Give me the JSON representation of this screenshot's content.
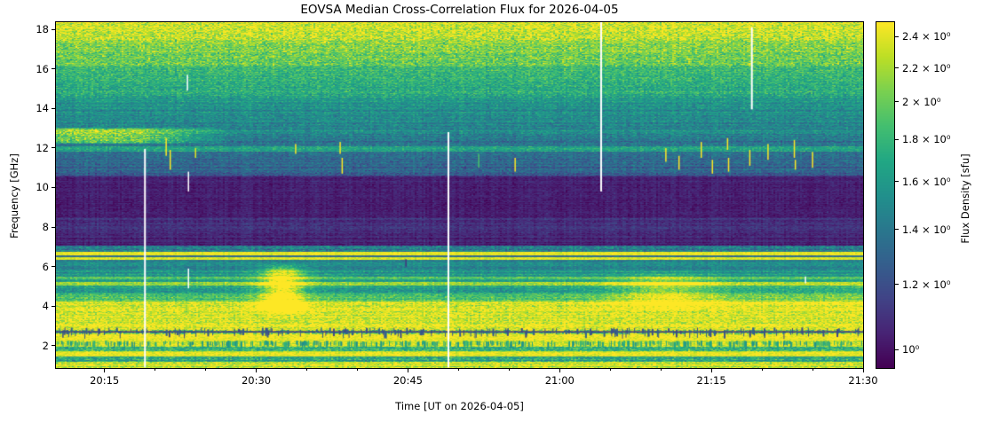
{
  "figure": {
    "background": "#ffffff",
    "text_color": "#000000"
  },
  "chart_data": {
    "type": "heatmap",
    "subtype": "radio-dynamic-spectrum",
    "title": "EOVSA Median Cross-Correlation Flux for 2026-04-05",
    "xlabel": "Time [UT on 2026-04-05]",
    "ylabel": "Frequency [GHz]",
    "colorbar_label": "Flux Density [sfu]",
    "colormap": "viridis",
    "scale": "log",
    "flux_range_sfu": [
      0.95,
      2.5
    ],
    "x_axis": {
      "start_minutes": 1210.2,
      "end_minutes": 1290.0,
      "major_tick_minutes": [
        1215,
        1230,
        1245,
        1260,
        1275,
        1290
      ],
      "major_tick_labels": [
        "20:15",
        "20:30",
        "20:45",
        "21:00",
        "21:15",
        "21:30"
      ],
      "minor_tick_interval_min": 5
    },
    "y_axis": {
      "f_min_ghz": 0.87,
      "f_max_ghz": 18.36,
      "tick_values": [
        2,
        4,
        6,
        8,
        10,
        12,
        14,
        16,
        18
      ]
    },
    "colorbar_ticks": [
      {
        "value": 2.4,
        "label": "2.4 × 10⁰"
      },
      {
        "value": 2.2,
        "label": "2.2 × 10⁰"
      },
      {
        "value": 2.0,
        "label": "2 × 10⁰"
      },
      {
        "value": 1.8,
        "label": "1.8 × 10⁰"
      },
      {
        "value": 1.6,
        "label": "1.6 × 10⁰"
      },
      {
        "value": 1.4,
        "label": "1.4 × 10⁰"
      },
      {
        "value": 1.2,
        "label": "1.2 × 10⁰"
      },
      {
        "value": 1.0,
        "label": "10⁰"
      }
    ],
    "frequency_bands": [
      {
        "f_hi": 18.4,
        "f_lo": 17.45,
        "flux_hi": 2.4,
        "flux_lo": 2.28,
        "noise": 0.18,
        "stripe": 0.03
      },
      {
        "f_hi": 17.45,
        "f_lo": 16.1,
        "flux_hi": 2.1,
        "flux_lo": 1.95,
        "noise": 0.16,
        "stripe": 0.035
      },
      {
        "f_hi": 16.1,
        "f_lo": 14.55,
        "flux_hi": 1.82,
        "flux_lo": 1.66,
        "noise": 0.13,
        "stripe": 0.04
      },
      {
        "f_hi": 14.55,
        "f_lo": 12.1,
        "flux_hi": 1.6,
        "flux_lo": 1.4,
        "noise": 0.11,
        "stripe": 0.05
      },
      {
        "f_hi": 12.1,
        "f_lo": 11.82,
        "flux_hi": 1.66,
        "flux_lo": 1.66,
        "noise": 0.1,
        "stripe": 0.04
      },
      {
        "f_hi": 11.82,
        "f_lo": 10.55,
        "flux_hi": 1.33,
        "flux_lo": 1.27,
        "noise": 0.1,
        "stripe": 0.055
      },
      {
        "f_hi": 10.55,
        "f_lo": 8.5,
        "flux_hi": 1.03,
        "flux_lo": 1.03,
        "noise": 0.05,
        "stripe": 0.02
      },
      {
        "f_hi": 8.5,
        "f_lo": 7.4,
        "flux_hi": 1.09,
        "flux_lo": 1.06,
        "noise": 0.06,
        "stripe": 0.04
      },
      {
        "f_hi": 7.4,
        "f_lo": 7.05,
        "flux_hi": 1.04,
        "flux_lo": 1.04,
        "noise": 0.05,
        "stripe": 0.04
      },
      {
        "f_hi": 7.05,
        "f_lo": 6.73,
        "flux_hi": 1.42,
        "flux_lo": 1.42,
        "noise": 0.15,
        "stripe": 0.05
      },
      {
        "f_hi": 6.73,
        "f_lo": 6.58,
        "flux_hi": 2.42,
        "flux_lo": 2.42,
        "noise": 0.05,
        "stripe": 0.02
      },
      {
        "f_hi": 6.58,
        "f_lo": 6.49,
        "flux_hi": 1.3,
        "flux_lo": 1.3,
        "noise": 0.06,
        "stripe": 0.04
      },
      {
        "f_hi": 6.49,
        "f_lo": 6.36,
        "flux_hi": 2.35,
        "flux_lo": 2.35,
        "noise": 0.06,
        "stripe": 0.02
      },
      {
        "f_hi": 6.36,
        "f_lo": 5.8,
        "flux_hi": 1.48,
        "flux_lo": 1.48,
        "noise": 0.09,
        "stripe": 0.05
      },
      {
        "f_hi": 5.8,
        "f_lo": 5.5,
        "flux_hi": 1.6,
        "flux_lo": 1.6,
        "noise": 0.1,
        "stripe": 0.05
      },
      {
        "f_hi": 5.5,
        "f_lo": 5.35,
        "flux_hi": 1.95,
        "flux_lo": 1.95,
        "noise": 0.1,
        "stripe": 0.04
      },
      {
        "f_hi": 5.35,
        "f_lo": 5.22,
        "flux_hi": 1.62,
        "flux_lo": 1.62,
        "noise": 0.09,
        "stripe": 0.04
      },
      {
        "f_hi": 5.22,
        "f_lo": 5.06,
        "flux_hi": 2.15,
        "flux_lo": 2.15,
        "noise": 0.1,
        "stripe": 0.04
      },
      {
        "f_hi": 5.06,
        "f_lo": 4.65,
        "flux_hi": 1.68,
        "flux_lo": 1.6,
        "noise": 0.11,
        "stripe": 0.05
      },
      {
        "f_hi": 4.65,
        "f_lo": 4.22,
        "flux_hi": 1.85,
        "flux_lo": 2.05,
        "noise": 0.12,
        "stripe": 0.05
      },
      {
        "f_hi": 4.22,
        "f_lo": 3.1,
        "flux_hi": 2.32,
        "flux_lo": 2.38,
        "noise": 0.14,
        "stripe": 0.045
      },
      {
        "f_hi": 3.1,
        "f_lo": 2.8,
        "flux_hi": 2.45,
        "flux_lo": 2.45,
        "noise": 0.13,
        "stripe": 0.03
      },
      {
        "f_hi": 2.8,
        "f_lo": 2.58,
        "flux_hi": 2.1,
        "flux_lo": 2.1,
        "noise": 0.22,
        "stripe": 0.06
      },
      {
        "f_hi": 2.58,
        "f_lo": 2.26,
        "flux_hi": 2.42,
        "flux_lo": 2.42,
        "noise": 0.08,
        "stripe": 0.025
      },
      {
        "f_hi": 2.26,
        "f_lo": 1.95,
        "flux_hi": 2.35,
        "flux_lo": 2.35,
        "noise": 0.1,
        "stripe": 0.03
      },
      {
        "f_hi": 1.95,
        "f_lo": 1.72,
        "flux_hi": 1.75,
        "flux_lo": 1.75,
        "noise": 0.16,
        "stripe": 0.06
      },
      {
        "f_hi": 1.72,
        "f_lo": 1.45,
        "flux_hi": 2.4,
        "flux_lo": 2.4,
        "noise": 0.08,
        "stripe": 0.025
      },
      {
        "f_hi": 1.45,
        "f_lo": 1.18,
        "flux_hi": 1.65,
        "flux_lo": 1.65,
        "noise": 0.17,
        "stripe": 0.06
      },
      {
        "f_hi": 1.18,
        "f_lo": 0.87,
        "flux_hi": 2.3,
        "flux_lo": 2.3,
        "noise": 0.14,
        "stripe": 0.04
      }
    ],
    "features": {
      "burst": {
        "center_min": 1232.6,
        "sigma_min": 1.5,
        "f_hi": 5.7,
        "f_lo": 4.0,
        "taper_ghz": 0.5,
        "amp": 0.5
      },
      "secondary_burst": {
        "center_min": 1270.5,
        "sigma_min": 3.5,
        "f_hi": 5.3,
        "f_lo": 4.2,
        "taper_ghz": 0.5,
        "amp": 0.25
      },
      "late_ramp": {
        "start_min": 1255,
        "rise_min": 35,
        "f_hi": 5.0,
        "f_lo": 4.2,
        "taper_ghz": 0.4,
        "amp": 0.1
      },
      "left_bright_patch": {
        "f_hi": 12.95,
        "f_lo": 12.28,
        "amp": 0.38,
        "full_until_min": 1218,
        "zero_at_min": 1228
      },
      "dark_line_ghz": 2.7,
      "dark_tick_band": {
        "f_center": 2.7,
        "count": 230
      },
      "barcode_band": {
        "f_hi": 2.26,
        "f_lo": 1.97,
        "count": 430
      },
      "data_gaps": [
        {
          "m": 1219.0,
          "f1": 11.95,
          "f2": 0.9,
          "w": 2
        },
        {
          "m": 1223.2,
          "f1": 15.7,
          "f2": 14.9,
          "w": 1.5
        },
        {
          "m": 1223.3,
          "f1": 10.8,
          "f2": 9.8,
          "w": 1.5
        },
        {
          "m": 1223.3,
          "f1": 5.9,
          "f2": 4.9,
          "w": 1.5
        },
        {
          "m": 1249.0,
          "f1": 12.8,
          "f2": 0.9,
          "w": 2
        },
        {
          "m": 1264.1,
          "f1": 18.36,
          "f2": 9.8,
          "w": 2
        },
        {
          "m": 1279.0,
          "f1": 18.1,
          "f2": 13.95,
          "w": 2
        },
        {
          "m": 1284.3,
          "f1": 5.5,
          "f2": 5.15,
          "w": 1.5
        }
      ],
      "rfi_marks": [
        {
          "m": 1221.1,
          "f1": 12.5,
          "f2": 11.6,
          "v": 2.5
        },
        {
          "m": 1221.5,
          "f1": 11.9,
          "f2": 10.9,
          "v": 2.5
        },
        {
          "m": 1224.0,
          "f1": 12.0,
          "f2": 11.5,
          "v": 2.4
        },
        {
          "m": 1233.9,
          "f1": 12.2,
          "f2": 11.7,
          "v": 2.5
        },
        {
          "m": 1238.3,
          "f1": 12.3,
          "f2": 11.7,
          "v": 2.5
        },
        {
          "m": 1238.5,
          "f1": 11.5,
          "f2": 10.7,
          "v": 2.5
        },
        {
          "m": 1244.8,
          "f1": 6.37,
          "f2": 6.0,
          "v": 1.1
        },
        {
          "m": 1252.0,
          "f1": 11.7,
          "f2": 11.0,
          "v": 1.9
        },
        {
          "m": 1255.6,
          "f1": 11.5,
          "f2": 10.8,
          "v": 2.5
        },
        {
          "m": 1270.5,
          "f1": 12.0,
          "f2": 11.3,
          "v": 2.5
        },
        {
          "m": 1271.8,
          "f1": 11.6,
          "f2": 10.9,
          "v": 2.5
        },
        {
          "m": 1274.0,
          "f1": 12.3,
          "f2": 11.5,
          "v": 2.5
        },
        {
          "m": 1275.1,
          "f1": 11.4,
          "f2": 10.7,
          "v": 2.5
        },
        {
          "m": 1276.6,
          "f1": 12.5,
          "f2": 11.9,
          "v": 2.5
        },
        {
          "m": 1276.7,
          "f1": 11.5,
          "f2": 10.8,
          "v": 2.5
        },
        {
          "m": 1278.8,
          "f1": 11.9,
          "f2": 11.1,
          "v": 2.5
        },
        {
          "m": 1280.6,
          "f1": 12.2,
          "f2": 11.4,
          "v": 2.5
        },
        {
          "m": 1283.2,
          "f1": 12.4,
          "f2": 11.5,
          "v": 2.5
        },
        {
          "m": 1283.3,
          "f1": 11.4,
          "f2": 10.9,
          "v": 2.5
        },
        {
          "m": 1285.0,
          "f1": 11.8,
          "f2": 11.0,
          "v": 2.5
        }
      ]
    }
  }
}
